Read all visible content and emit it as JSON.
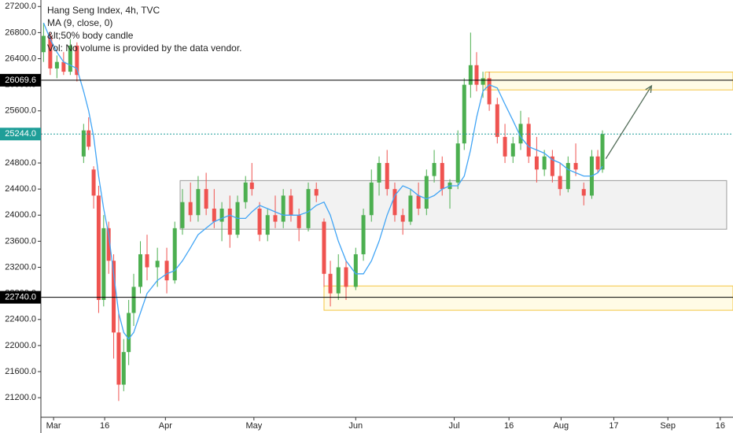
{
  "chart_data": {
    "type": "candlestick",
    "legend_lines": [
      "Hang Seng Index, 4h, TVC",
      "MA (9, close, 0)",
      "&lt;50% body candle",
      "Vol: No volume is provided by the data vendor."
    ],
    "up_color": "#4caf50",
    "down_color": "#ef5350",
    "ma_color": "#42a5f5",
    "xlim": [
      -3.8,
      203.5
    ],
    "ylim": [
      20900,
      27300
    ],
    "xticks": [
      {
        "value": 0,
        "label": "Mar"
      },
      {
        "value": 15.3,
        "label": "16"
      },
      {
        "value": 33.5,
        "label": "Apr"
      },
      {
        "value": 60,
        "label": "May"
      },
      {
        "value": 90.5,
        "label": "Jun"
      },
      {
        "value": 120,
        "label": "Jul"
      },
      {
        "value": 136.4,
        "label": "16"
      },
      {
        "value": 152,
        "label": "Aug"
      },
      {
        "value": 167.8,
        "label": "17"
      },
      {
        "value": 184,
        "label": "Sep"
      },
      {
        "value": 199.7,
        "label": "16"
      }
    ],
    "yticks": [
      {
        "value": 27200,
        "label": "27200.0"
      },
      {
        "value": 26800,
        "label": "26800.0"
      },
      {
        "value": 26400,
        "label": "26400.0"
      },
      {
        "value": 26000,
        "label": "26000.0"
      },
      {
        "value": 25600,
        "label": "25600.0"
      },
      {
        "value": 25200,
        "label": "25200.0"
      },
      {
        "value": 24800,
        "label": "24800.0"
      },
      {
        "value": 24400,
        "label": "24400.0"
      },
      {
        "value": 24000,
        "label": "24000.0"
      },
      {
        "value": 23600,
        "label": "23600.0"
      },
      {
        "value": 23200,
        "label": "23200.0"
      },
      {
        "value": 22800,
        "label": "22800.0"
      },
      {
        "value": 22400,
        "label": "22400.0"
      },
      {
        "value": 22000,
        "label": "22000.0"
      },
      {
        "value": 21600,
        "label": "21600.0"
      },
      {
        "value": 21200,
        "label": "21200.0"
      }
    ],
    "x": [
      -3,
      -1,
      1,
      3,
      5,
      7,
      9,
      10.5,
      12,
      13.5,
      15,
      16.5,
      18,
      19.5,
      21,
      22.5,
      24,
      26,
      28,
      31.1,
      33.9,
      36.3,
      38.6,
      41,
      43.3,
      45.7,
      48.1,
      50.4,
      52.8,
      55.1,
      57.5,
      59.4,
      61.7,
      64.1,
      66.4,
      68.8,
      71.1,
      73.5,
      76.3,
      78.7,
      81,
      82.9,
      85.3,
      87.6,
      90.5,
      92.8,
      95.2,
      97.5,
      99.9,
      102.2,
      104.6,
      106.9,
      109.3,
      111.7,
      114,
      116.4,
      118.7,
      121.1,
      123,
      124.9,
      126.7,
      128.6,
      130.5,
      132.9,
      135.2,
      137.6,
      139.9,
      142.3,
      144.7,
      147,
      149.4,
      151.7,
      154.1,
      156.4,
      158.8,
      161.2,
      163,
      164.4
    ],
    "open": [
      26500,
      26750,
      26250,
      26350,
      26200,
      26600,
      24900,
      25300,
      24700,
      24300,
      22700,
      23800,
      23300,
      22200,
      21400,
      21900,
      22500,
      22900,
      23400,
      23200,
      23300,
      23000,
      23800,
      24200,
      24000,
      24400,
      24100,
      23900,
      24100,
      23700,
      24200,
      24500,
      24100,
      23700,
      24000,
      23900,
      24300,
      24000,
      23800,
      24400,
      23900,
      23100,
      22800,
      23200,
      22900,
      23400,
      24000,
      24500,
      24800,
      24400,
      24000,
      23900,
      24300,
      24100,
      24600,
      24800,
      24400,
      24500,
      25100,
      26000,
      26300,
      26000,
      26100,
      25700,
      25200,
      24900,
      25100,
      25400,
      24900,
      24700,
      24900,
      24600,
      24400,
      24800,
      24400,
      24300,
      24900,
      24700
    ],
    "high": [
      26950,
      26800,
      26450,
      26500,
      26700,
      26650,
      25400,
      25500,
      24750,
      24450,
      24000,
      23900,
      23400,
      22500,
      22100,
      22700,
      23100,
      23600,
      23700,
      23500,
      23500,
      23900,
      24400,
      24500,
      24600,
      24650,
      24400,
      24200,
      24300,
      24300,
      24600,
      24800,
      24200,
      24100,
      24300,
      24400,
      24400,
      24100,
      24500,
      24500,
      23950,
      23300,
      23400,
      23300,
      23500,
      24100,
      24700,
      24900,
      25000,
      24500,
      24100,
      24400,
      24500,
      24700,
      25000,
      24900,
      24550,
      25300,
      26100,
      26800,
      26500,
      26200,
      26200,
      25800,
      25400,
      25200,
      25600,
      25500,
      25200,
      25000,
      25000,
      24800,
      24900,
      25100,
      24500,
      25000,
      25000,
      25300
    ],
    "low": [
      26350,
      26150,
      26100,
      26150,
      26150,
      26050,
      24800,
      25000,
      24100,
      22500,
      22600,
      23100,
      21800,
      21150,
      21300,
      21700,
      22300,
      22800,
      23000,
      22900,
      22800,
      22950,
      23700,
      23900,
      23900,
      24000,
      23800,
      23600,
      23500,
      23650,
      24100,
      24300,
      23600,
      23600,
      23800,
      23800,
      23900,
      23600,
      23750,
      24200,
      22900,
      22600,
      22700,
      22700,
      22850,
      23300,
      23900,
      24300,
      24300,
      23900,
      23700,
      23850,
      24000,
      24000,
      24500,
      24300,
      24100,
      24400,
      25000,
      25800,
      25900,
      25800,
      25600,
      25100,
      24800,
      24800,
      25000,
      24800,
      24500,
      24600,
      24500,
      24300,
      24350,
      24600,
      24150,
      24250,
      24650,
      24650
    ],
    "close": [
      26750,
      26250,
      26350,
      26200,
      26600,
      26150,
      25300,
      25050,
      24300,
      22700,
      23800,
      23300,
      22200,
      21400,
      21900,
      22500,
      22900,
      23400,
      23200,
      23300,
      23000,
      23800,
      24200,
      24000,
      24400,
      24100,
      23900,
      24100,
      23700,
      24200,
      24500,
      24400,
      23700,
      24000,
      23900,
      24300,
      24000,
      23800,
      24400,
      24300,
      23100,
      22800,
      23200,
      22900,
      23400,
      24000,
      24500,
      24800,
      24400,
      24000,
      23900,
      24300,
      24100,
      24600,
      24800,
      24400,
      24500,
      25100,
      26000,
      26300,
      26000,
      26100,
      25700,
      25200,
      24900,
      25100,
      25400,
      24900,
      24700,
      24900,
      24600,
      24400,
      24800,
      24700,
      24300,
      24900,
      24700,
      25244
    ],
    "ma": [
      26950,
      26700,
      26500,
      26350,
      26300,
      26250,
      25900,
      25600,
      25200,
      24600,
      24100,
      23700,
      23100,
      22500,
      22200,
      22100,
      22200,
      22500,
      22800,
      23000,
      23100,
      23150,
      23300,
      23500,
      23700,
      23800,
      23900,
      23950,
      24000,
      23950,
      23950,
      24050,
      24150,
      24100,
      24050,
      24000,
      24000,
      24000,
      24050,
      24150,
      24200,
      24000,
      23600,
      23300,
      23100,
      23100,
      23300,
      23600,
      24000,
      24300,
      24450,
      24400,
      24300,
      24250,
      24300,
      24400,
      24450,
      24450,
      24600,
      25000,
      25500,
      25900,
      26000,
      25950,
      25700,
      25450,
      25200,
      25050,
      25000,
      24950,
      24850,
      24800,
      24700,
      24650,
      24600,
      24600,
      24650,
      24750
    ],
    "zones": [
      {
        "x": [
          37.9,
          201.6
        ],
        "y": [
          24530,
          23784
        ],
        "fill": "#f2f2f2",
        "stroke": "#9e9e9e"
      },
      {
        "x": [
          129.3,
          203.5
        ],
        "y": [
          26194,
          25921
        ],
        "fill": "#fffbe6",
        "stroke": "#f4c542"
      },
      {
        "x": [
          81,
          203.5
        ],
        "y": [
          22914,
          22541
        ],
        "fill": "#fffbe6",
        "stroke": "#f4c542"
      }
    ],
    "hlines": [
      {
        "value": 26069.6,
        "label": "26069.6",
        "color": "#000000",
        "dash": false
      },
      {
        "value": 25244,
        "label": "25244.0",
        "color": "#1e9e98",
        "dash": true
      },
      {
        "value": 22740,
        "label": "22740.0",
        "color": "#000000",
        "dash": false
      }
    ],
    "arrow": {
      "x": [
        165.4,
        179.1
      ],
      "y": [
        24865,
        25983
      ],
      "color": "#546e5a"
    }
  }
}
